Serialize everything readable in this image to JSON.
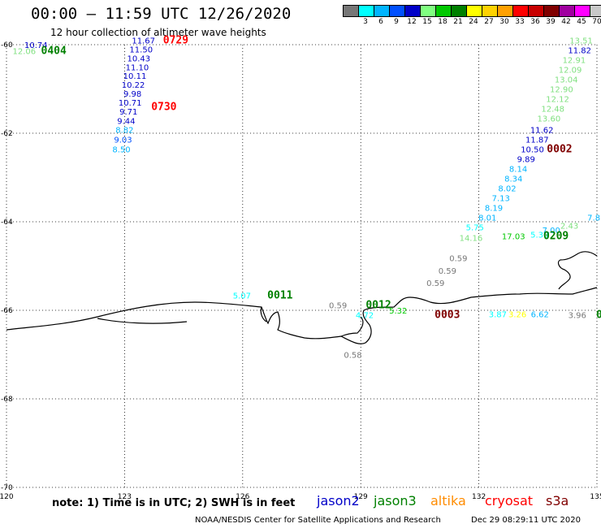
{
  "header": {
    "title": "00:00 – 11:59 UTC 12/26/2020",
    "subtitle": "12 hour collection of altimeter wave heights"
  },
  "legend": {
    "unit": "(ft)",
    "swatches": [
      {
        "color": "#777777",
        "label": ""
      },
      {
        "color": "#00ffff",
        "label": "3"
      },
      {
        "color": "#00b4ff",
        "label": "6"
      },
      {
        "color": "#0050ff",
        "label": "9"
      },
      {
        "color": "#0000c8",
        "label": "12"
      },
      {
        "color": "#80ff80",
        "label": "15"
      },
      {
        "color": "#00c800",
        "label": "18"
      },
      {
        "color": "#008000",
        "label": "21"
      },
      {
        "color": "#ffff00",
        "label": "24"
      },
      {
        "color": "#ffd200",
        "label": "27"
      },
      {
        "color": "#ffa000",
        "label": "30"
      },
      {
        "color": "#ff0000",
        "label": "33"
      },
      {
        "color": "#c80000",
        "label": "36"
      },
      {
        "color": "#800000",
        "label": "39"
      },
      {
        "color": "#a000a0",
        "label": "42"
      },
      {
        "color": "#ff00ff",
        "label": "45"
      },
      {
        "color": "#c8c8c8",
        "label": "70"
      },
      {
        "color": "#000000",
        "label": ""
      }
    ]
  },
  "axes": {
    "lon_ticks": [
      "120",
      "123",
      "126",
      "129",
      "132",
      "135"
    ],
    "lat_ticks": [
      "-60",
      "-62",
      "-64",
      "-66",
      "-68",
      "-70"
    ]
  },
  "annotations": [
    {
      "text": "10.74",
      "lon": 120.75,
      "lat": -60.0,
      "color": "#0000c8"
    },
    {
      "text": "12.06",
      "lon": 120.45,
      "lat": -60.14,
      "color": "#80e080"
    },
    {
      "text": "0404",
      "lon": 121.2,
      "lat": -60.14,
      "color": "#008000",
      "time": true
    },
    {
      "text": "11.67",
      "lon": 123.48,
      "lat": -59.9,
      "color": "#0000c8"
    },
    {
      "text": "11.50",
      "lon": 123.42,
      "lat": -60.1,
      "color": "#0000c8"
    },
    {
      "text": "10.43",
      "lon": 123.36,
      "lat": -60.3,
      "color": "#0000c8"
    },
    {
      "text": "11.10",
      "lon": 123.32,
      "lat": -60.5,
      "color": "#0000c8"
    },
    {
      "text": "10.11",
      "lon": 123.26,
      "lat": -60.7,
      "color": "#0000c8"
    },
    {
      "text": "10.22",
      "lon": 123.22,
      "lat": -60.9,
      "color": "#0000c8"
    },
    {
      "text": "9.98",
      "lon": 123.2,
      "lat": -61.1,
      "color": "#0000c8"
    },
    {
      "text": "10.71",
      "lon": 123.14,
      "lat": -61.3,
      "color": "#0000c8"
    },
    {
      "text": "9.71",
      "lon": 123.1,
      "lat": -61.5,
      "color": "#0000c8"
    },
    {
      "text": "9.44",
      "lon": 123.04,
      "lat": -61.72,
      "color": "#0000c8"
    },
    {
      "text": "8.82",
      "lon": 123.0,
      "lat": -61.92,
      "color": "#00b4ff"
    },
    {
      "text": "9.03",
      "lon": 122.96,
      "lat": -62.14,
      "color": "#0050ff"
    },
    {
      "text": "8.50",
      "lon": 122.92,
      "lat": -62.36,
      "color": "#00b4ff"
    },
    {
      "text": "0729",
      "lon": 124.3,
      "lat": -59.9,
      "color": "#ff0000",
      "time": true
    },
    {
      "text": "0730",
      "lon": 124.0,
      "lat": -61.4,
      "color": "#ff0000",
      "time": true
    },
    {
      "text": "13.51",
      "lon": 134.6,
      "lat": -59.9,
      "color": "#80e080"
    },
    {
      "text": "11.82",
      "lon": 134.56,
      "lat": -60.12,
      "color": "#0000c8"
    },
    {
      "text": "12.91",
      "lon": 134.42,
      "lat": -60.34,
      "color": "#80e080"
    },
    {
      "text": "12.09",
      "lon": 134.32,
      "lat": -60.56,
      "color": "#80e080"
    },
    {
      "text": "13.04",
      "lon": 134.22,
      "lat": -60.78,
      "color": "#80e080"
    },
    {
      "text": "12.90",
      "lon": 134.1,
      "lat": -61.0,
      "color": "#80e080"
    },
    {
      "text": "12.12",
      "lon": 134.0,
      "lat": -61.22,
      "color": "#80e080"
    },
    {
      "text": "12.48",
      "lon": 133.88,
      "lat": -61.44,
      "color": "#80e080"
    },
    {
      "text": "13.60",
      "lon": 133.78,
      "lat": -61.66,
      "color": "#80e080"
    },
    {
      "text": "11.62",
      "lon": 133.6,
      "lat": -61.92,
      "color": "#0000c8"
    },
    {
      "text": "11.87",
      "lon": 133.48,
      "lat": -62.14,
      "color": "#0000c8"
    },
    {
      "text": "10.50",
      "lon": 133.36,
      "lat": -62.36,
      "color": "#0000c8"
    },
    {
      "text": "9.89",
      "lon": 133.2,
      "lat": -62.58,
      "color": "#0000c8"
    },
    {
      "text": "0002",
      "lon": 134.05,
      "lat": -62.36,
      "color": "#800000",
      "time": true
    },
    {
      "text": "8.14",
      "lon": 133.0,
      "lat": -62.8,
      "color": "#00b4ff"
    },
    {
      "text": "8.34",
      "lon": 132.88,
      "lat": -63.02,
      "color": "#00b4ff"
    },
    {
      "text": "8.02",
      "lon": 132.72,
      "lat": -63.24,
      "color": "#00b4ff"
    },
    {
      "text": "7.13",
      "lon": 132.56,
      "lat": -63.46,
      "color": "#00b4ff"
    },
    {
      "text": "8.19",
      "lon": 132.38,
      "lat": -63.68,
      "color": "#00b4ff"
    },
    {
      "text": "8.01",
      "lon": 132.22,
      "lat": -63.9,
      "color": "#00b4ff"
    },
    {
      "text": "5.75",
      "lon": 131.9,
      "lat": -64.12,
      "color": "#00ffff"
    },
    {
      "text": "14.16",
      "lon": 131.8,
      "lat": -64.36,
      "color": "#80e080"
    },
    {
      "text": "7.8",
      "lon": 134.92,
      "lat": -63.9,
      "color": "#00b4ff"
    },
    {
      "text": "2.43",
      "lon": 134.3,
      "lat": -64.08,
      "color": "#80e080"
    },
    {
      "text": "7.00",
      "lon": 133.84,
      "lat": -64.18,
      "color": "#00b4ff"
    },
    {
      "text": "5.30",
      "lon": 133.54,
      "lat": -64.28,
      "color": "#00ffff"
    },
    {
      "text": "17.03",
      "lon": 132.88,
      "lat": -64.32,
      "color": "#00c800"
    },
    {
      "text": "0209",
      "lon": 133.96,
      "lat": -64.32,
      "color": "#008000",
      "time": true
    },
    {
      "text": "0.59",
      "lon": 131.48,
      "lat": -64.82,
      "color": "#777777"
    },
    {
      "text": "0.59",
      "lon": 131.2,
      "lat": -65.1,
      "color": "#777777"
    },
    {
      "text": "0.59",
      "lon": 130.9,
      "lat": -65.38,
      "color": "#777777"
    },
    {
      "text": "5.07",
      "lon": 125.98,
      "lat": -65.66,
      "color": "#00ffff"
    },
    {
      "text": "0011",
      "lon": 126.95,
      "lat": -65.66,
      "color": "#008000",
      "time": true
    },
    {
      "text": "0.59",
      "lon": 128.42,
      "lat": -65.88,
      "color": "#777777"
    },
    {
      "text": "0012",
      "lon": 129.45,
      "lat": -65.88,
      "color": "#008000",
      "time": true
    },
    {
      "text": "5.32",
      "lon": 129.95,
      "lat": -66.0,
      "color": "#00c800"
    },
    {
      "text": "4.72",
      "lon": 129.1,
      "lat": -66.1,
      "color": "#00ffff"
    },
    {
      "text": "0003",
      "lon": 131.2,
      "lat": -66.1,
      "color": "#800000",
      "time": true
    },
    {
      "text": "3.87",
      "lon": 132.48,
      "lat": -66.08,
      "color": "#00ffff"
    },
    {
      "text": "3.26",
      "lon": 132.98,
      "lat": -66.08,
      "color": "#ffff00"
    },
    {
      "text": "6.62",
      "lon": 133.55,
      "lat": -66.08,
      "color": "#00b4ff"
    },
    {
      "text": "3.96",
      "lon": 134.5,
      "lat": -66.1,
      "color": "#777777"
    },
    {
      "text": "0",
      "lon": 135.06,
      "lat": -66.1,
      "color": "#008000",
      "time": true
    },
    {
      "text": "0.58",
      "lon": 128.8,
      "lat": -67.0,
      "color": "#777777"
    }
  ],
  "footer": {
    "note": "note: 1) Time is in UTC; 2) SWH is in feet",
    "satellites": [
      {
        "name": "jason2",
        "color": "#0000c8"
      },
      {
        "name": "jason3",
        "color": "#008000"
      },
      {
        "name": "altika",
        "color": "#ff8c00"
      },
      {
        "name": "cryosat",
        "color": "#ff0000"
      },
      {
        "name": "s3a",
        "color": "#800000"
      }
    ],
    "credits": "NOAA/NESDIS Center for Satellite Applications and Research",
    "timestamp": "Dec 29 08:29:11 UTC 2020"
  }
}
